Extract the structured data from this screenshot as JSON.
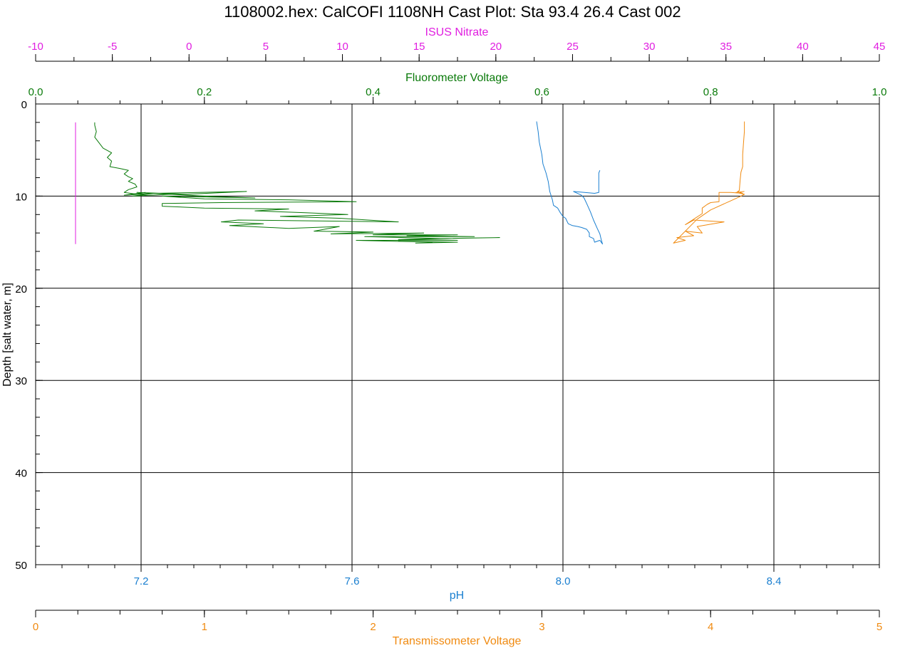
{
  "colors": {
    "nitrate": "#e01ee0",
    "fluorometer": "#0a7a0a",
    "ph": "#1a7fd0",
    "transmissometer": "#f08a10",
    "axis": "#000000",
    "grid": "#000000"
  },
  "chart_data": {
    "type": "line",
    "title": "1108002.hex: CalCOFI 1108NH Cast Plot: Sta 93.4 26.4 Cast 002",
    "y_axis": {
      "label": "Depth [salt water, m]",
      "range": [
        0,
        50
      ],
      "inverted": true,
      "major_ticks": [
        0,
        10,
        20,
        30,
        40,
        50
      ],
      "tick_labels": [
        "0",
        "10",
        "20",
        "30",
        "40",
        "50"
      ],
      "minor_step": 2
    },
    "x_axes": [
      {
        "id": "nitrate",
        "label": "ISUS Nitrate",
        "position": "top-outer",
        "range": [
          -10,
          45
        ],
        "major_ticks": [
          -10,
          -5,
          0,
          5,
          10,
          15,
          20,
          25,
          30,
          35,
          40,
          45
        ],
        "tick_labels": [
          "-10",
          "-5",
          "0",
          "5",
          "10",
          "15",
          "20",
          "25",
          "30",
          "35",
          "40",
          "45"
        ],
        "minor_step": 2.5
      },
      {
        "id": "fluorometer",
        "label": "Fluorometer Voltage",
        "position": "top-inner",
        "range": [
          0.0,
          1.0
        ],
        "major_ticks": [
          0.0,
          0.2,
          0.4,
          0.6,
          0.8,
          1.0
        ],
        "tick_labels": [
          "0.0",
          "0.2",
          "0.4",
          "0.6",
          "0.8",
          "1.0"
        ],
        "minor_step": 0.05
      },
      {
        "id": "ph",
        "label": "pH",
        "position": "bottom-inner",
        "range": [
          7.0,
          8.6
        ],
        "major_ticks": [
          7.2,
          7.6,
          8.0,
          8.4
        ],
        "tick_labels": [
          "7.2",
          "7.6",
          "8.0",
          "8.4"
        ],
        "minor_step": 0.05
      },
      {
        "id": "transmissometer",
        "label": "Transmissometer Voltage",
        "position": "bottom-outer",
        "range": [
          0,
          5
        ],
        "major_ticks": [
          0,
          1,
          2,
          3,
          4,
          5
        ],
        "tick_labels": [
          "0",
          "1",
          "2",
          "3",
          "4",
          "5"
        ],
        "minor_step": 0.25
      }
    ],
    "grid": {
      "on": true,
      "x_axis": "ph",
      "y_major": true
    },
    "series": [
      {
        "axis": "nitrate",
        "points": [
          [
            -7.4,
            2.0
          ],
          [
            -7.4,
            15.2
          ]
        ]
      },
      {
        "axis": "fluorometer",
        "points": [
          [
            0.07,
            2.0
          ],
          [
            0.07,
            2.3
          ],
          [
            0.072,
            3.0
          ],
          [
            0.07,
            3.6
          ],
          [
            0.075,
            4.2
          ],
          [
            0.08,
            4.8
          ],
          [
            0.09,
            5.3
          ],
          [
            0.085,
            5.8
          ],
          [
            0.09,
            6.2
          ],
          [
            0.088,
            6.8
          ],
          [
            0.1,
            7.0
          ],
          [
            0.11,
            7.2
          ],
          [
            0.105,
            7.6
          ],
          [
            0.11,
            7.9
          ],
          [
            0.115,
            8.1
          ],
          [
            0.11,
            8.4
          ],
          [
            0.118,
            8.7
          ],
          [
            0.12,
            9.0
          ],
          [
            0.11,
            9.3
          ],
          [
            0.105,
            9.6
          ],
          [
            0.12,
            9.8
          ],
          [
            0.13,
            9.6
          ],
          [
            0.105,
            9.9
          ],
          [
            0.14,
            9.7
          ],
          [
            0.115,
            10.0
          ],
          [
            0.16,
            9.8
          ],
          [
            0.12,
            9.6
          ],
          [
            0.18,
            9.8
          ],
          [
            0.25,
            9.5
          ],
          [
            0.14,
            9.7
          ],
          [
            0.2,
            10.0
          ],
          [
            0.26,
            10.2
          ],
          [
            0.15,
            10.0
          ],
          [
            0.2,
            10.3
          ],
          [
            0.3,
            10.4
          ],
          [
            0.38,
            10.6
          ],
          [
            0.22,
            10.7
          ],
          [
            0.15,
            10.8
          ],
          [
            0.15,
            11.1
          ],
          [
            0.2,
            11.3
          ],
          [
            0.3,
            11.4
          ],
          [
            0.26,
            11.6
          ],
          [
            0.32,
            11.8
          ],
          [
            0.37,
            12.0
          ],
          [
            0.29,
            12.2
          ],
          [
            0.36,
            12.4
          ],
          [
            0.43,
            12.8
          ],
          [
            0.24,
            12.6
          ],
          [
            0.22,
            12.8
          ],
          [
            0.27,
            13.0
          ],
          [
            0.23,
            13.2
          ],
          [
            0.3,
            13.5
          ],
          [
            0.36,
            13.3
          ],
          [
            0.33,
            13.8
          ],
          [
            0.4,
            13.9
          ],
          [
            0.35,
            14.1
          ],
          [
            0.46,
            14.0
          ],
          [
            0.4,
            14.2
          ],
          [
            0.5,
            14.2
          ],
          [
            0.44,
            14.3
          ],
          [
            0.52,
            14.4
          ],
          [
            0.39,
            14.4
          ],
          [
            0.48,
            14.6
          ],
          [
            0.55,
            14.5
          ],
          [
            0.43,
            14.7
          ],
          [
            0.5,
            14.8
          ],
          [
            0.38,
            14.8
          ],
          [
            0.47,
            15.0
          ],
          [
            0.43,
            14.9
          ],
          [
            0.5,
            15.0
          ],
          [
            0.45,
            15.1
          ]
        ]
      },
      {
        "axis": "ph",
        "points": [
          [
            7.95,
            1.9
          ],
          [
            7.953,
            3.0
          ],
          [
            7.955,
            4.1
          ],
          [
            7.96,
            5.5
          ],
          [
            7.962,
            6.5
          ],
          [
            7.968,
            7.5
          ],
          [
            7.972,
            8.4
          ],
          [
            7.975,
            9.5
          ],
          [
            7.98,
            10.4
          ],
          [
            7.982,
            11.0
          ],
          [
            7.99,
            11.3
          ],
          [
            7.995,
            11.8
          ],
          [
            8.0,
            12.2
          ],
          [
            8.005,
            12.4
          ],
          [
            8.01,
            13.0
          ],
          [
            8.018,
            13.2
          ],
          [
            8.028,
            13.3
          ],
          [
            8.035,
            13.4
          ],
          [
            8.045,
            13.6
          ],
          [
            8.05,
            14.0
          ],
          [
            8.05,
            14.4
          ],
          [
            8.058,
            14.6
          ],
          [
            8.06,
            15.0
          ],
          [
            8.07,
            14.8
          ],
          [
            8.075,
            15.2
          ],
          [
            8.072,
            14.6
          ],
          [
            8.07,
            14.1
          ],
          [
            8.065,
            13.5
          ],
          [
            8.058,
            12.6
          ],
          [
            8.052,
            11.7
          ],
          [
            8.045,
            10.8
          ],
          [
            8.04,
            10.2
          ],
          [
            8.035,
            9.9
          ],
          [
            8.02,
            9.5
          ],
          [
            8.06,
            9.7
          ],
          [
            8.068,
            9.6
          ],
          [
            8.068,
            9.0
          ],
          [
            8.068,
            8.4
          ],
          [
            8.068,
            7.5
          ],
          [
            8.07,
            7.2
          ]
        ]
      },
      {
        "axis": "transmissometer",
        "points": [
          [
            4.2,
            1.9
          ],
          [
            4.2,
            3.0
          ],
          [
            4.195,
            4.2
          ],
          [
            4.19,
            5.5
          ],
          [
            4.19,
            6.8
          ],
          [
            4.18,
            7.4
          ],
          [
            4.175,
            8.3
          ],
          [
            4.17,
            9.4
          ],
          [
            4.16,
            9.5
          ],
          [
            4.19,
            9.7
          ],
          [
            4.12,
            9.6
          ],
          [
            4.05,
            9.6
          ],
          [
            4.05,
            10.3
          ],
          [
            4.05,
            10.6
          ],
          [
            4.0,
            10.7
          ],
          [
            3.98,
            10.9
          ],
          [
            3.95,
            11.3
          ],
          [
            3.95,
            11.9
          ],
          [
            3.9,
            12.5
          ],
          [
            3.85,
            13.1
          ],
          [
            3.9,
            12.6
          ],
          [
            4.08,
            12.8
          ],
          [
            3.92,
            13.3
          ],
          [
            3.95,
            14.0
          ],
          [
            3.85,
            13.8
          ],
          [
            3.9,
            14.3
          ],
          [
            3.8,
            14.5
          ],
          [
            3.85,
            14.8
          ],
          [
            3.78,
            15.1
          ],
          [
            3.92,
            12.5
          ],
          [
            4.0,
            11.5
          ],
          [
            4.12,
            10.5
          ],
          [
            4.18,
            10.0
          ],
          [
            4.2,
            9.8
          ],
          [
            4.15,
            9.6
          ],
          [
            4.2,
            9.5
          ]
        ]
      }
    ]
  }
}
